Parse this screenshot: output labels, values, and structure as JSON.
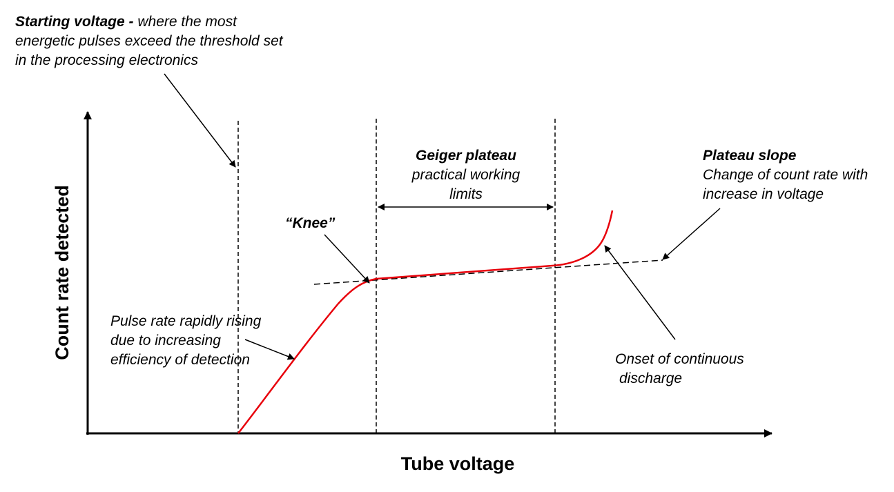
{
  "axes": {
    "x_title": "Tube voltage",
    "y_title": "Count rate detected"
  },
  "annotations": {
    "starting_voltage": {
      "bold": "Starting voltage - ",
      "line1_rest": "where the most",
      "line2": "energetic pulses exceed the threshold set",
      "line3": "in the processing electronics"
    },
    "knee": "“Knee”",
    "geiger_plateau": {
      "title": "Geiger plateau",
      "line1": "practical working",
      "line2": "limits"
    },
    "plateau_slope": {
      "title": "Plateau slope",
      "line1": "Change of count rate with",
      "line2": "increase in voltage"
    },
    "pulse_rate": {
      "line1": "Pulse rate rapidly rising",
      "line2": "due to increasing",
      "line3": "efficiency of detection"
    },
    "discharge": {
      "line1": "Onset of continuous",
      "line2": "discharge"
    }
  },
  "colors": {
    "curve": "#e8000b",
    "ink": "#000000"
  }
}
